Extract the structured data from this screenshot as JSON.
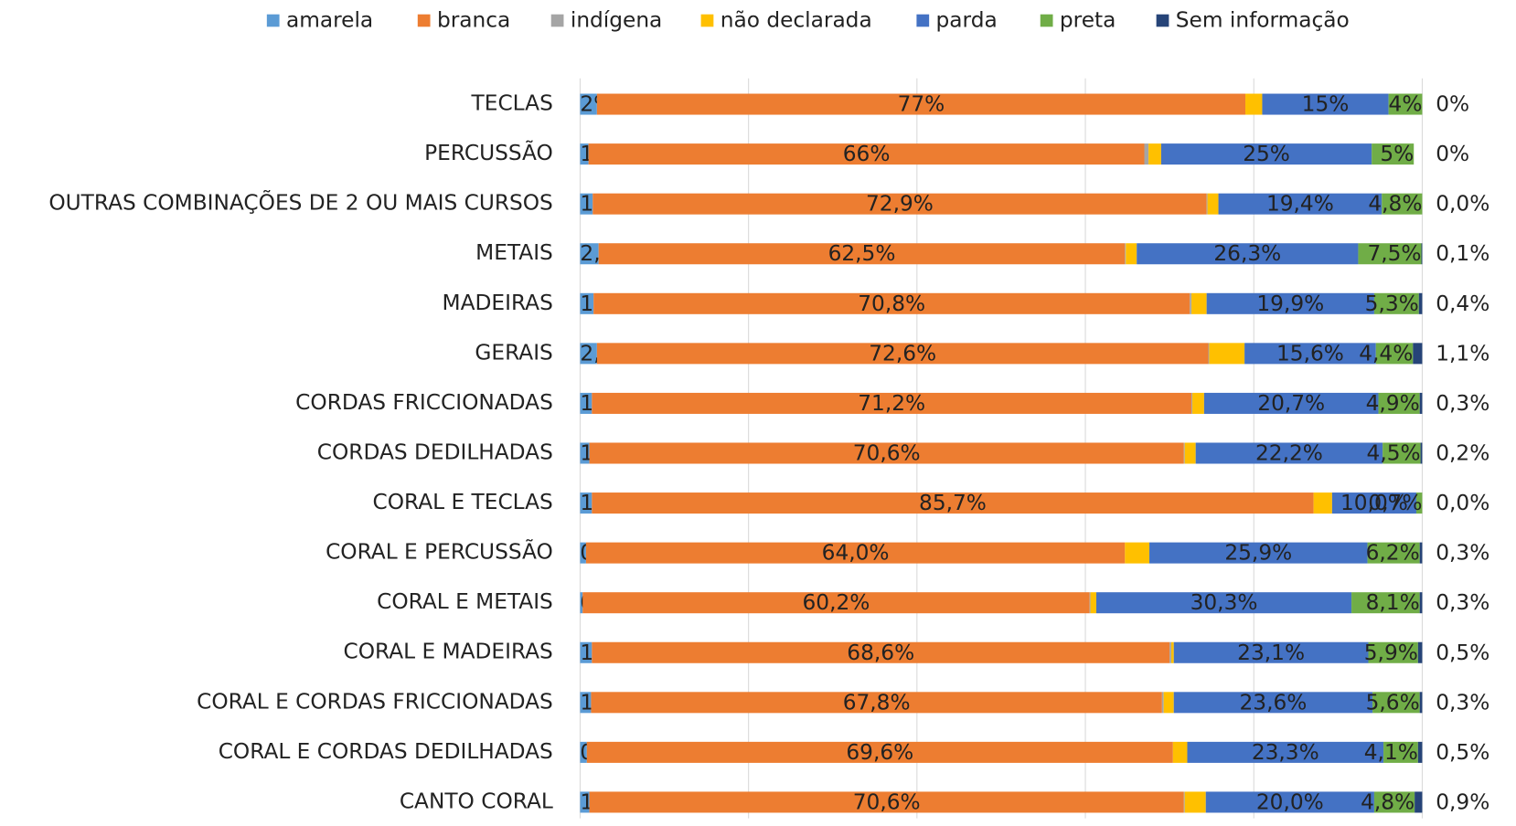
{
  "chart_data": {
    "type": "stacked_barh",
    "categories": [
      "TECLAS",
      "PERCUSSÃO",
      "OUTRAS COMBINAÇÕES DE 2 OU MAIS CURSOS",
      "METAIS",
      "MADEIRAS",
      "GERAIS",
      "CORDAS FRICCIONADAS",
      "CORDAS DEDILHADAS",
      "CORAL E TECLAS",
      "CORAL E PERCUSSÃO",
      "CORAL E METAIS",
      "CORAL E MADEIRAS",
      "CORAL E CORDAS FRICCIONADAS",
      "CORAL E CORDAS DEDILHADAS",
      "CANTO CORAL"
    ],
    "xlim": [
      0,
      100
    ],
    "xticks": [
      0,
      20,
      40,
      60,
      80,
      100
    ],
    "grid": true,
    "legend": "top",
    "series": [
      {
        "name": "amarela",
        "color": "#5B9BD5",
        "values": [
          2,
          1,
          1.5,
          2.2,
          1.6,
          2.0,
          1.4,
          1.1,
          1.4,
          0.7,
          0.3,
          1.4,
          1.3,
          0.8,
          1.1
        ],
        "value_labels": [
          "2%",
          "1%",
          "1,5%",
          "2,2%",
          "1,6%",
          "2,0%",
          "1,4%",
          "1,1%",
          "1,4%",
          "0,7%",
          "0,3%",
          "1,4%",
          "1,3%",
          "0,8%",
          "1,1%"
        ]
      },
      {
        "name": "branca",
        "color": "#ED7D31",
        "values": [
          77,
          66,
          72.9,
          62.5,
          70.8,
          72.6,
          71.2,
          70.6,
          85.7,
          64.0,
          60.2,
          68.6,
          67.8,
          69.6,
          70.6
        ],
        "value_labels": [
          "77%",
          "66%",
          "72,9%",
          "62,5%",
          "70,8%",
          "72,6%",
          "71,2%",
          "70,6%",
          "85,7%",
          "64,0%",
          "60,2%",
          "68,6%",
          "67,8%",
          "69,6%",
          "70,6%"
        ]
      },
      {
        "name": "indígena",
        "color": "#A5A5A5",
        "values": [
          0,
          0.5,
          0.1,
          0.1,
          0.2,
          0.1,
          0.1,
          0.1,
          0,
          0,
          0.1,
          0.2,
          0.2,
          0,
          0.1
        ]
      },
      {
        "name": "não declarada",
        "color": "#FFC000",
        "values": [
          2,
          1.5,
          1.3,
          1.3,
          1.8,
          4.2,
          1.4,
          1.3,
          2.2,
          2.9,
          0.7,
          0.3,
          1.2,
          1.7,
          2.5
        ]
      },
      {
        "name": "parda",
        "color": "#4472C4",
        "values": [
          15,
          25,
          19.4,
          26.3,
          19.9,
          15.6,
          20.7,
          22.2,
          10.0,
          25.9,
          30.3,
          23.1,
          23.6,
          23.3,
          20.0
        ],
        "value_labels": [
          "15%",
          "25%",
          "19,4%",
          "26,3%",
          "19,9%",
          "15,6%",
          "20,7%",
          "22,2%",
          "10,0%",
          "25,9%",
          "30,3%",
          "23,1%",
          "23,6%",
          "23,3%",
          "20,0%"
        ]
      },
      {
        "name": "preta",
        "color": "#70AD47",
        "values": [
          4,
          5,
          4.8,
          7.5,
          5.3,
          4.4,
          4.9,
          4.5,
          0.7,
          6.2,
          8.1,
          5.9,
          5.6,
          4.1,
          4.8
        ],
        "value_labels": [
          "4%",
          "5%",
          "4,8%",
          "7,5%",
          "5,3%",
          "4,4%",
          "4,9%",
          "4,5%",
          "0,7%",
          "6,2%",
          "8,1%",
          "5,9%",
          "5,6%",
          "4,1%",
          "4,8%"
        ]
      },
      {
        "name": "Sem informação",
        "color": "#264478",
        "values": [
          0,
          0,
          0.0,
          0.1,
          0.4,
          1.1,
          0.3,
          0.2,
          0.0,
          0.3,
          0.3,
          0.5,
          0.3,
          0.5,
          0.9
        ],
        "value_labels": [
          "0%",
          "0%",
          "0,0%",
          "0,1%",
          "0,4%",
          "1,1%",
          "0,3%",
          "0,2%",
          "0,0%",
          "0,3%",
          "0,3%",
          "0,5%",
          "0,3%",
          "0,5%",
          "0,9%"
        ]
      }
    ]
  }
}
